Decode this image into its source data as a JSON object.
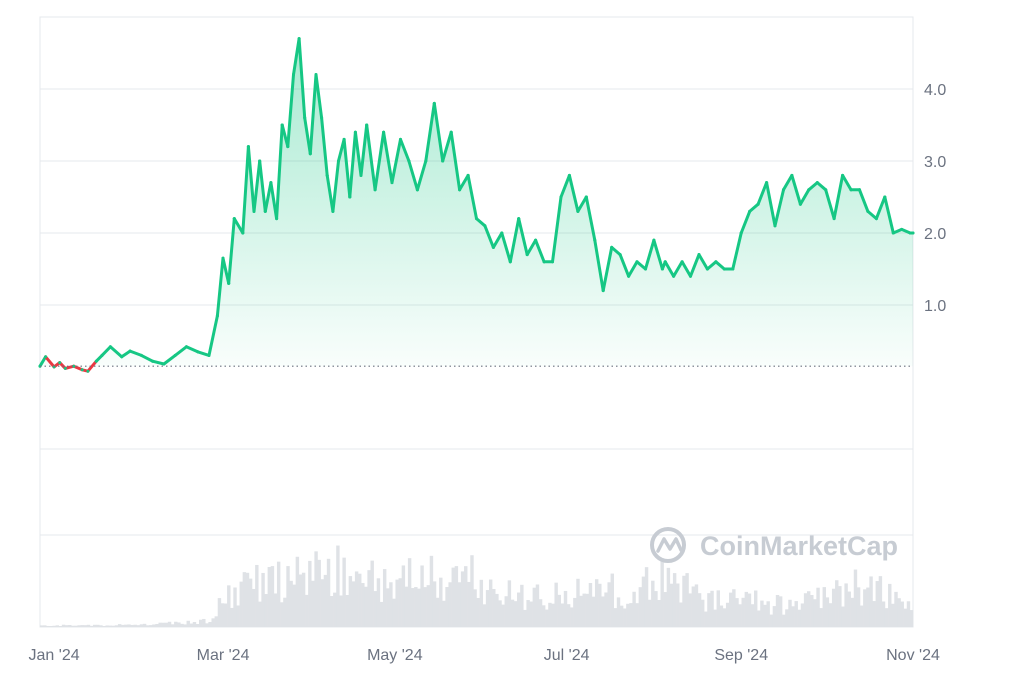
{
  "watermark": "CoinMarketCap",
  "colors": {
    "up": "#16c784",
    "down": "#ea3943",
    "grid": "#e6e8ec",
    "baseline": "#6b7280",
    "volume": "#dfe2e6",
    "tick": "#6b7280"
  },
  "chart_data": {
    "type": "area",
    "grid": true,
    "legend": "none",
    "baseline_value": 0.15,
    "ylim": [
      -1.0,
      5.0
    ],
    "y_ticks": [
      1.0,
      2.0,
      3.0,
      4.0
    ],
    "y_tick_labels": [
      "1.0",
      "2.0",
      "3.0",
      "4.0"
    ],
    "x_ticks": [
      {
        "date": "2024-01-01",
        "label": "Jan '24"
      },
      {
        "date": "2024-03-01",
        "label": "Mar '24"
      },
      {
        "date": "2024-05-01",
        "label": "May '24"
      },
      {
        "date": "2024-07-01",
        "label": "Jul '24"
      },
      {
        "date": "2024-09-01",
        "label": "Sep '24"
      },
      {
        "date": "2024-11-01",
        "label": "Nov '24"
      }
    ],
    "x_range": [
      "2023-12-27",
      "2024-11-01"
    ],
    "series": [
      {
        "x": [
          "2023-12-27",
          "2023-12-29",
          "2024-01-01",
          "2024-01-03",
          "2024-01-05",
          "2024-01-08",
          "2024-01-11",
          "2024-01-13",
          "2024-01-16",
          "2024-01-18",
          "2024-01-21",
          "2024-01-25",
          "2024-01-28",
          "2024-02-01",
          "2024-02-05",
          "2024-02-09",
          "2024-02-13",
          "2024-02-17",
          "2024-02-21",
          "2024-02-25",
          "2024-02-28",
          "2024-03-01",
          "2024-03-03",
          "2024-03-05",
          "2024-03-08",
          "2024-03-10",
          "2024-03-12",
          "2024-03-14",
          "2024-03-16",
          "2024-03-18",
          "2024-03-20",
          "2024-03-22",
          "2024-03-24",
          "2024-03-26",
          "2024-03-28",
          "2024-03-30",
          "2024-04-01",
          "2024-04-03",
          "2024-04-05",
          "2024-04-07",
          "2024-04-09",
          "2024-04-11",
          "2024-04-13",
          "2024-04-15",
          "2024-04-17",
          "2024-04-19",
          "2024-04-21",
          "2024-04-24",
          "2024-04-27",
          "2024-04-30",
          "2024-05-03",
          "2024-05-06",
          "2024-05-09",
          "2024-05-12",
          "2024-05-15",
          "2024-05-18",
          "2024-05-21",
          "2024-05-24",
          "2024-05-27",
          "2024-05-30",
          "2024-06-02",
          "2024-06-05",
          "2024-06-08",
          "2024-06-11",
          "2024-06-14",
          "2024-06-17",
          "2024-06-20",
          "2024-06-23",
          "2024-06-26",
          "2024-06-29",
          "2024-07-02",
          "2024-07-05",
          "2024-07-08",
          "2024-07-11",
          "2024-07-14",
          "2024-07-17",
          "2024-07-20",
          "2024-07-23",
          "2024-07-26",
          "2024-07-29",
          "2024-08-01",
          "2024-08-04",
          "2024-08-05",
          "2024-08-08",
          "2024-08-11",
          "2024-08-14",
          "2024-08-17",
          "2024-08-20",
          "2024-08-23",
          "2024-08-26",
          "2024-08-29",
          "2024-09-01",
          "2024-09-04",
          "2024-09-07",
          "2024-09-10",
          "2024-09-13",
          "2024-09-16",
          "2024-09-19",
          "2024-09-22",
          "2024-09-25",
          "2024-09-28",
          "2024-10-01",
          "2024-10-04",
          "2024-10-07",
          "2024-10-10",
          "2024-10-13",
          "2024-10-16",
          "2024-10-19",
          "2024-10-22",
          "2024-10-25",
          "2024-10-28",
          "2024-10-31",
          "2024-11-01"
        ],
        "y": [
          0.15,
          0.28,
          0.14,
          0.2,
          0.12,
          0.15,
          0.1,
          0.08,
          0.22,
          0.3,
          0.42,
          0.28,
          0.36,
          0.3,
          0.22,
          0.18,
          0.3,
          0.42,
          0.35,
          0.3,
          0.85,
          1.65,
          1.3,
          2.2,
          2.0,
          3.2,
          2.3,
          3.0,
          2.3,
          2.7,
          2.2,
          3.5,
          3.2,
          4.2,
          4.7,
          3.6,
          3.1,
          4.2,
          3.6,
          2.8,
          2.3,
          3.0,
          3.3,
          2.5,
          3.4,
          2.8,
          3.5,
          2.6,
          3.4,
          2.7,
          3.3,
          3.0,
          2.6,
          3.0,
          3.8,
          3.0,
          3.4,
          2.6,
          2.8,
          2.2,
          2.1,
          1.8,
          2.0,
          1.6,
          2.2,
          1.7,
          1.9,
          1.6,
          1.6,
          2.5,
          2.8,
          2.3,
          2.5,
          1.9,
          1.2,
          1.8,
          1.7,
          1.4,
          1.6,
          1.5,
          1.9,
          1.5,
          1.6,
          1.4,
          1.6,
          1.4,
          1.7,
          1.5,
          1.6,
          1.5,
          1.5,
          2.0,
          2.3,
          2.4,
          2.7,
          2.1,
          2.6,
          2.8,
          2.4,
          2.6,
          2.7,
          2.6,
          2.2,
          2.8,
          2.6,
          2.6,
          2.3,
          2.2,
          2.5,
          2.0,
          2.05,
          2.0,
          2.0
        ]
      }
    ],
    "volume": {
      "x": [
        "2024-01-01",
        "2024-02-01",
        "2024-02-25",
        "2024-03-05",
        "2024-03-15",
        "2024-03-25",
        "2024-04-05",
        "2024-04-15",
        "2024-04-25",
        "2024-05-05",
        "2024-05-15",
        "2024-05-25",
        "2024-06-05",
        "2024-06-15",
        "2024-06-25",
        "2024-07-05",
        "2024-07-15",
        "2024-07-25",
        "2024-08-05",
        "2024-08-15",
        "2024-08-25",
        "2024-09-05",
        "2024-09-15",
        "2024-09-25",
        "2024-10-05",
        "2024-10-15",
        "2024-10-25",
        "2024-11-01"
      ],
      "y": [
        0.02,
        0.03,
        0.08,
        0.55,
        0.7,
        0.6,
        0.85,
        0.7,
        0.6,
        0.75,
        0.65,
        0.8,
        0.5,
        0.45,
        0.4,
        0.45,
        0.55,
        0.45,
        0.75,
        0.45,
        0.35,
        0.35,
        0.3,
        0.35,
        0.45,
        0.6,
        0.4,
        0.3
      ]
    }
  }
}
